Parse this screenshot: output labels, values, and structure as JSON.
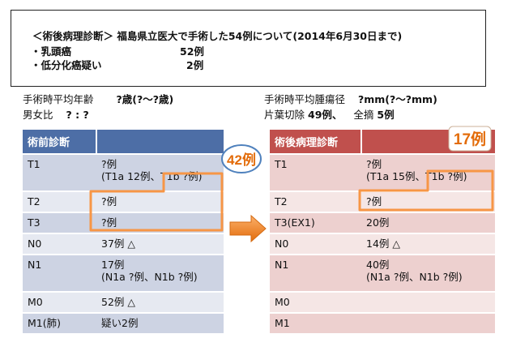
{
  "header": {
    "line1": "＜術後病理診断＞ 福島県立医大で手術した54例について(2014年6月30日まで)",
    "line2_label": "・乳頭癌",
    "line2_value": "52例",
    "line3_label": "・低分化癌疑い",
    "line3_value": "2例"
  },
  "info": {
    "age_label": "手術時平均年齢",
    "age_value": "?歳(?〜?歳)",
    "sex_label": "男女比",
    "sex_value": "? : ?",
    "tumor_label": "手術時平均腫瘍径",
    "tumor_value": "?mm(?〜?mm)",
    "lobe_label": "片葉切除",
    "lobe_value": "49例、",
    "total_label": "全摘",
    "total_value": "5例"
  },
  "left_table": {
    "title": "術前診断",
    "rows": [
      {
        "label": "T1",
        "value": "?例",
        "sub": "(T1a 12例、T1b ?例)"
      },
      {
        "label": "T2",
        "value": "?例",
        "sub": ""
      },
      {
        "label": "T3",
        "value": "?例",
        "sub": ""
      },
      {
        "label": "N0",
        "value": "37例 △",
        "sub": ""
      },
      {
        "label": "N1",
        "value": "17例",
        "sub": "(N1a ?例、N1b ?例)"
      },
      {
        "label": "M0",
        "value": "52例 △",
        "sub": ""
      },
      {
        "label": "M1(肺)",
        "value": "疑い2例",
        "sub": ""
      }
    ]
  },
  "right_table": {
    "title": "術後病理診断",
    "rows": [
      {
        "label": "T1",
        "value": "?例",
        "sub": "(T1a 15例、T1b ?例)"
      },
      {
        "label": "T2",
        "value": "?例",
        "sub": ""
      },
      {
        "label": "T3(EX1)",
        "value": "20例",
        "sub": ""
      },
      {
        "label": "N0",
        "value": "14例 △",
        "sub": ""
      },
      {
        "label": "N1",
        "value": "40例",
        "sub": "(N1a ?例、N1b ?例)"
      },
      {
        "label": "M0",
        "value": "",
        "sub": ""
      },
      {
        "label": "M1",
        "value": "",
        "sub": ""
      }
    ]
  },
  "annotations": {
    "left_badge": "42例",
    "right_badge": "17例",
    "badge_color": "#e36c0a",
    "highlight_color": "#f79646"
  }
}
